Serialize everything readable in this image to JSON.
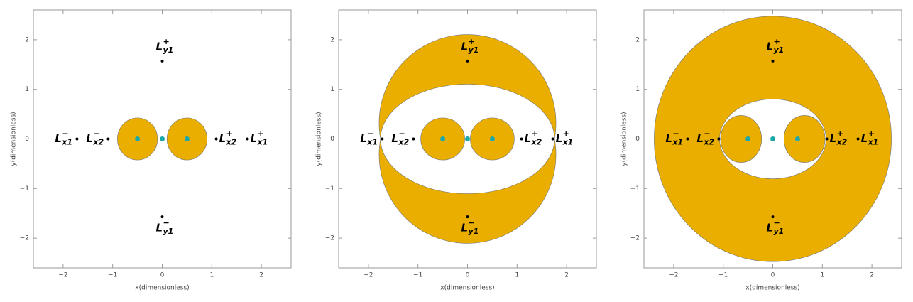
{
  "chart_data": [
    {
      "type": "scatter",
      "xlabel": "x(dimensionless)",
      "ylabel": "y(dimensionless)",
      "xlim": [
        -2.6,
        2.6
      ],
      "ylim": [
        -2.6,
        2.6
      ],
      "xticks": [
        {
          "value": -2,
          "label": "−2"
        },
        {
          "value": -1,
          "label": "−1"
        },
        0,
        1,
        2
      ],
      "yticks": [
        {
          "value": -2,
          "label": "−2"
        },
        {
          "value": -1,
          "label": "−1"
        },
        0,
        1,
        2
      ],
      "regions": [
        {
          "shape": "ellipse",
          "cx": -0.5,
          "cy": 0,
          "rx": 0.4,
          "ry": 0.42,
          "fill": "#e9ae00"
        },
        {
          "shape": "ellipse",
          "cx": 0.5,
          "cy": 0,
          "rx": 0.4,
          "ry": 0.42,
          "fill": "#e9ae00"
        }
      ],
      "primaries": {
        "color": "#1aa8a8",
        "x": [
          -0.5,
          0,
          0.5
        ],
        "y": [
          0,
          0,
          0
        ]
      },
      "points": {
        "color": "#000000",
        "x": [
          -1.72,
          -1.09,
          1.09,
          1.72,
          0,
          0
        ],
        "y": [
          0,
          0,
          0,
          0,
          1.57,
          -1.57
        ],
        "labels": [
          {
            "base": "L",
            "sup": "−",
            "sub": "x1"
          },
          {
            "base": "L",
            "sup": "−",
            "sub": "x2"
          },
          {
            "base": "L",
            "sup": "+",
            "sub": "x2"
          },
          {
            "base": "L",
            "sup": "+",
            "sub": "x1"
          },
          {
            "base": "L",
            "sup": "+",
            "sub": "y1"
          },
          {
            "base": "L",
            "sup": "−",
            "sub": "y1"
          }
        ]
      }
    },
    {
      "type": "scatter",
      "xlabel": "x(dimensionless)",
      "ylabel": "y(dimensionless)",
      "xlim": [
        -2.6,
        2.6
      ],
      "ylim": [
        -2.6,
        2.6
      ],
      "xticks": [
        {
          "value": -2,
          "label": "−2"
        },
        {
          "value": -1,
          "label": "−1"
        },
        0,
        1,
        2
      ],
      "yticks": [
        {
          "value": -2,
          "label": "−2"
        },
        {
          "value": -1,
          "label": "−1"
        },
        0,
        1,
        2
      ],
      "regions": [
        {
          "shape": "ellipse",
          "cx": 0,
          "cy": 0.32,
          "rx": 1.78,
          "ry": 1.78,
          "fill": "#e9ae00"
        },
        {
          "shape": "ellipse",
          "cx": 0,
          "cy": -0.32,
          "rx": 1.78,
          "ry": 1.78,
          "fill": "#e9ae00"
        },
        {
          "shape": "ellipse",
          "cx": 0,
          "cy": 0,
          "rx": 1.75,
          "ry": 1.1,
          "fill": "#ffffff"
        },
        {
          "shape": "ellipse",
          "cx": -0.5,
          "cy": 0,
          "rx": 0.44,
          "ry": 0.42,
          "fill": "#e9ae00"
        },
        {
          "shape": "ellipse",
          "cx": 0.5,
          "cy": 0,
          "rx": 0.44,
          "ry": 0.42,
          "fill": "#e9ae00"
        }
      ],
      "primaries": {
        "color": "#1aa8a8",
        "x": [
          -0.5,
          0,
          0.5
        ],
        "y": [
          0,
          0,
          0
        ]
      },
      "points": {
        "color": "#000000",
        "x": [
          -1.72,
          -1.09,
          1.09,
          1.72,
          0,
          0
        ],
        "y": [
          0,
          0,
          0,
          0,
          1.57,
          -1.57
        ],
        "labels": [
          {
            "base": "L",
            "sup": "−",
            "sub": "x1"
          },
          {
            "base": "L",
            "sup": "−",
            "sub": "x2"
          },
          {
            "base": "L",
            "sup": "+",
            "sub": "x2"
          },
          {
            "base": "L",
            "sup": "+",
            "sub": "x1"
          },
          {
            "base": "L",
            "sup": "+",
            "sub": "y1"
          },
          {
            "base": "L",
            "sup": "−",
            "sub": "y1"
          }
        ]
      }
    },
    {
      "type": "scatter",
      "xlabel": "x(dimensionless)",
      "ylabel": "y(dimensionless)",
      "xlim": [
        -2.6,
        2.6
      ],
      "ylim": [
        -2.6,
        2.6
      ],
      "xticks": [
        {
          "value": -2,
          "label": "−2"
        },
        {
          "value": -1,
          "label": "−1"
        },
        0,
        1,
        2
      ],
      "yticks": [
        {
          "value": -2,
          "label": "−2"
        },
        {
          "value": -1,
          "label": "−1"
        },
        0,
        1,
        2
      ],
      "regions": [
        {
          "shape": "ellipse",
          "cx": 0,
          "cy": 0,
          "rx": 2.39,
          "ry": 2.47,
          "fill": "#e9ae00"
        },
        {
          "shape": "ellipse",
          "cx": 0,
          "cy": 0,
          "rx": 1.07,
          "ry": 0.8,
          "fill": "#ffffff"
        },
        {
          "shape": "ellipse",
          "cx": -0.64,
          "cy": 0,
          "rx": 0.41,
          "ry": 0.47,
          "fill": "#e9ae00"
        },
        {
          "shape": "ellipse",
          "cx": 0.64,
          "cy": 0,
          "rx": 0.41,
          "ry": 0.47,
          "fill": "#e9ae00"
        }
      ],
      "primaries": {
        "color": "#1aa8a8",
        "x": [
          -0.5,
          0,
          0.5
        ],
        "y": [
          0,
          0,
          0
        ]
      },
      "points": {
        "color": "#000000",
        "x": [
          -1.72,
          -1.09,
          1.09,
          1.72,
          0,
          0
        ],
        "y": [
          0,
          0,
          0,
          0,
          1.57,
          -1.57
        ],
        "labels": [
          {
            "base": "L",
            "sup": "−",
            "sub": "x1"
          },
          {
            "base": "L",
            "sup": "−",
            "sub": "x2"
          },
          {
            "base": "L",
            "sup": "+",
            "sub": "x2"
          },
          {
            "base": "L",
            "sup": "+",
            "sub": "x1"
          },
          {
            "base": "L",
            "sup": "+",
            "sub": "y1"
          },
          {
            "base": "L",
            "sup": "−",
            "sub": "y1"
          }
        ]
      }
    }
  ]
}
